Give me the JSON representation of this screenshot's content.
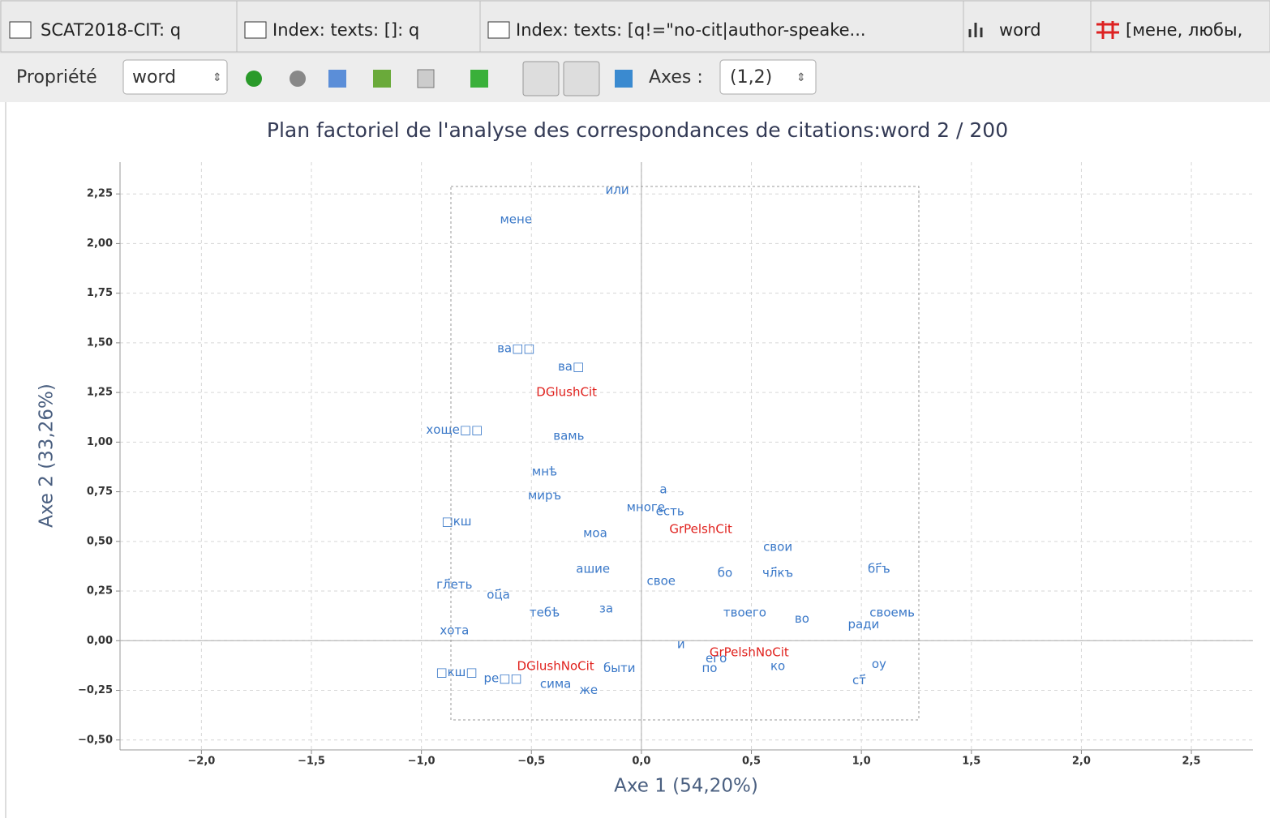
{
  "tabs": [
    "SCAT2018-CIT: q",
    "Index: texts: []: q",
    "Index: texts: [q!=\"no-cit|author-speake...",
    "word",
    "[мене, любы,"
  ],
  "toolbar": {
    "property_label": "Propriété",
    "property_value": "word",
    "axes_label": "Axes :",
    "axes_value": "(1,2)"
  },
  "chart_data": {
    "type": "scatter",
    "title": "Plan factoriel de l'analyse des correspondances de citations:word 2 / 200",
    "x_label": "Axe 1 (54,20%)",
    "y_label": "Axe 2 (33,26%)",
    "xlim": [
      -2.37,
      2.78
    ],
    "ylim": [
      -0.55,
      2.41
    ],
    "grid": true,
    "xticks": [
      {
        "value": -2,
        "label": "−2,0"
      },
      {
        "value": -1.5,
        "label": "−1,5"
      },
      {
        "value": -1,
        "label": "−1,0"
      },
      {
        "value": -0.5,
        "label": "−0,5"
      },
      {
        "value": 0,
        "label": "0,0"
      },
      {
        "value": 0.5,
        "label": "0,5"
      },
      {
        "value": 1,
        "label": "1,0"
      },
      {
        "value": 1.5,
        "label": "1,5"
      },
      {
        "value": 2,
        "label": "2,0"
      },
      {
        "value": 2.5,
        "label": "2,5"
      }
    ],
    "yticks": [
      {
        "value": -0.5,
        "label": "−0,50"
      },
      {
        "value": -0.25,
        "label": "−0,25"
      },
      {
        "value": 0,
        "label": "0,00"
      },
      {
        "value": 0.25,
        "label": "0,25"
      },
      {
        "value": 0.5,
        "label": "0,50"
      },
      {
        "value": 0.75,
        "label": "0,75"
      },
      {
        "value": 1,
        "label": "1,00"
      },
      {
        "value": 1.25,
        "label": "1,25"
      },
      {
        "value": 1.5,
        "label": "1,50"
      },
      {
        "value": 1.75,
        "label": "1,75"
      },
      {
        "value": 2,
        "label": "2,00"
      },
      {
        "value": 2.25,
        "label": "2,25"
      }
    ],
    "series": [
      {
        "color": "#3a78c8",
        "labels": [
          "или",
          "мене",
          "ва□□",
          "ва□",
          "хоще□□",
          "вамь",
          "мнѣ",
          "а",
          "миръ",
          "многе",
          "есть",
          "□кш",
          "моа",
          "свои",
          "бо",
          "чл҃къ",
          "бг҃ъ",
          "гл҃еть",
          "оц҃а",
          "ашие",
          "свое",
          "твоего",
          "во",
          "ради",
          "своемь",
          "хота",
          "его",
          "ко",
          "ст҃",
          "оу",
          "□кш□",
          "ре□□",
          "сима",
          "тебѣ",
          "за",
          "по",
          "и",
          "же",
          "быти"
        ],
        "x": [
          -0.11,
          -0.57,
          -0.57,
          -0.32,
          -0.85,
          -0.33,
          -0.44,
          0.1,
          -0.44,
          0.02,
          0.13,
          -0.84,
          -0.21,
          0.62,
          0.38,
          0.62,
          1.08,
          -0.85,
          -0.65,
          -0.22,
          0.09,
          0.47,
          0.73,
          1.01,
          1.14,
          -0.85,
          0.34,
          0.62,
          0.99,
          1.08,
          -0.84,
          -0.63,
          -0.39,
          -0.44,
          -0.16,
          0.31,
          0.18,
          -0.24,
          -0.1
        ],
        "y": [
          2.27,
          2.12,
          1.47,
          1.38,
          1.06,
          1.03,
          0.85,
          0.76,
          0.73,
          0.67,
          0.65,
          0.6,
          0.54,
          0.47,
          0.34,
          0.34,
          0.36,
          0.28,
          0.23,
          0.36,
          0.3,
          0.14,
          0.11,
          0.08,
          0.14,
          0.05,
          -0.09,
          -0.13,
          -0.2,
          -0.12,
          -0.16,
          -0.19,
          -0.22,
          0.14,
          0.16,
          -0.14,
          -0.02,
          -0.25,
          -0.14
        ]
      },
      {
        "color": "#e0201c",
        "labels": [
          "DGlushCit",
          "GrPelshCit",
          "GrPelshNoCit",
          "DGlushNoCit"
        ],
        "x": [
          -0.34,
          0.27,
          0.49,
          -0.39
        ],
        "y": [
          1.25,
          0.56,
          -0.06,
          -0.13
        ]
      }
    ]
  }
}
